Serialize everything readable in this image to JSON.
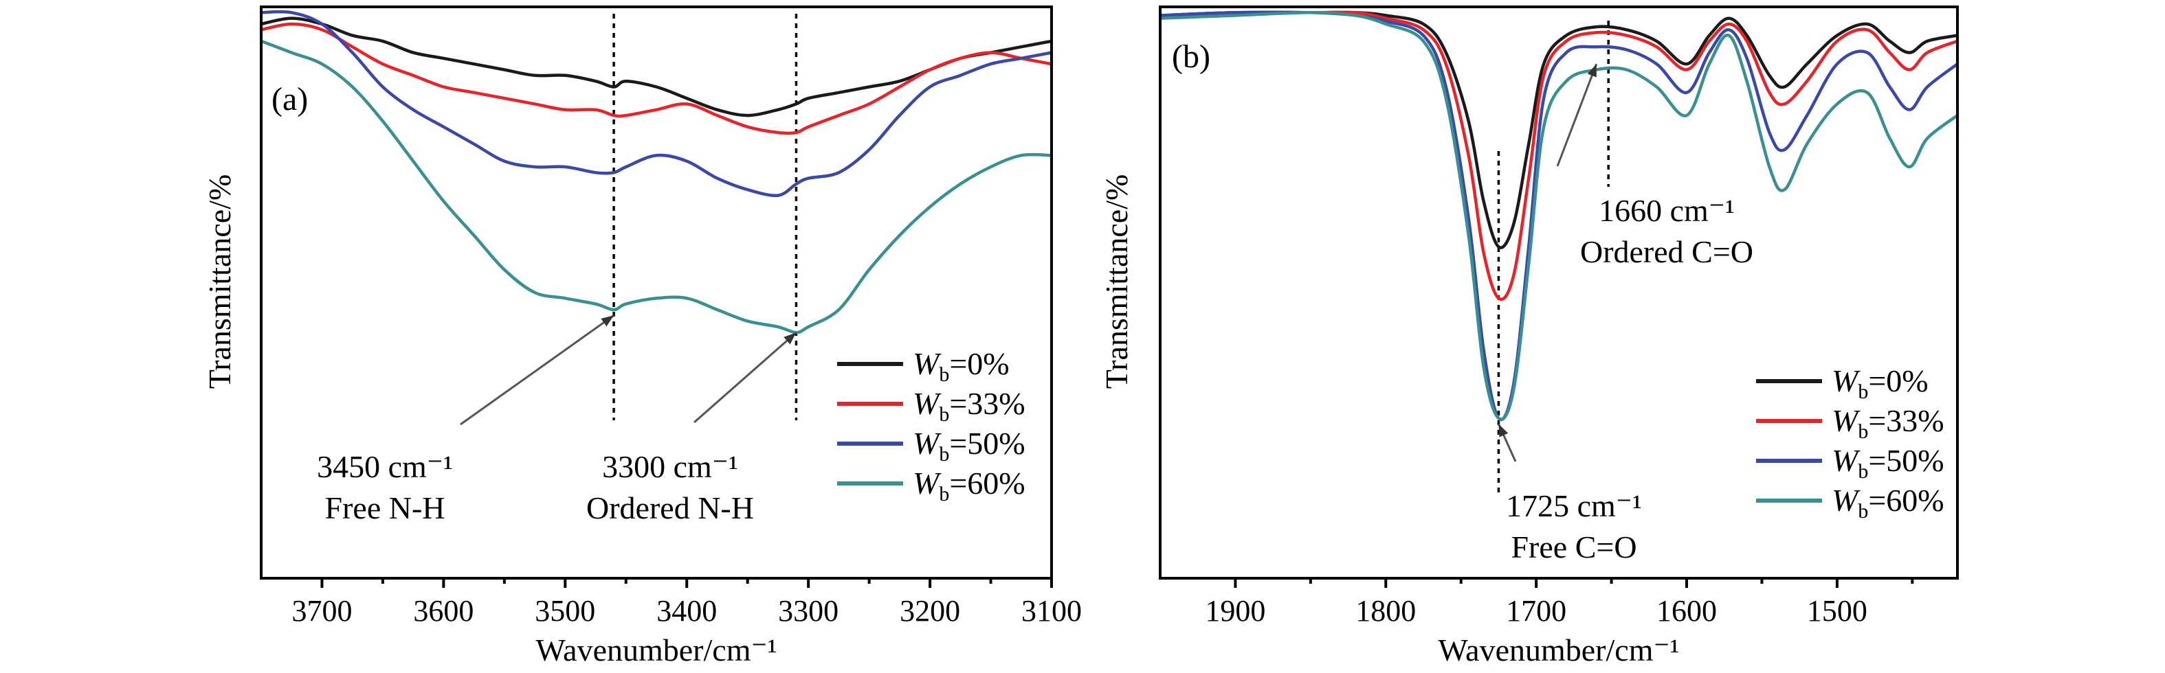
{
  "chart_data": [
    {
      "panel": "a",
      "panel_label": "(a)",
      "type": "line",
      "xlabel": "Wavenumber/cm⁻¹",
      "ylabel": "Transmittance/%",
      "xlim": [
        3750,
        3100
      ],
      "ylim": [
        0,
        100
      ],
      "xticks": [
        "3700",
        "3600",
        "3500",
        "3400",
        "3300",
        "3200",
        "3100"
      ],
      "xtick_values": [
        3700,
        3600,
        3500,
        3400,
        3300,
        3200,
        3100
      ],
      "grid": false,
      "legend": "bottom-right",
      "legend_items": [
        {
          "w": "W",
          "sub": "b",
          "rest": "=0%",
          "color": "#1a1a1a"
        },
        {
          "w": "W",
          "sub": "b",
          "rest": "=33%",
          "color": "#e8242a"
        },
        {
          "w": "W",
          "sub": "b",
          "rest": "=50%",
          "color": "#3a48a8"
        },
        {
          "w": "W",
          "sub": "b",
          "rest": "=60%",
          "color": "#3a9090"
        }
      ],
      "reference_lines": [
        3460,
        3310
      ],
      "annotations": [
        {
          "line1": "3450 cm⁻¹",
          "line2": "Free N-H",
          "target_x": 3460,
          "target_y": 46
        },
        {
          "line1": "3300 cm⁻¹",
          "line2": "Ordered N-H",
          "target_x": 3310,
          "target_y": 43
        }
      ],
      "x": [
        3750,
        3725,
        3700,
        3675,
        3650,
        3625,
        3600,
        3575,
        3550,
        3525,
        3500,
        3475,
        3460,
        3450,
        3425,
        3400,
        3375,
        3350,
        3325,
        3310,
        3300,
        3275,
        3250,
        3225,
        3200,
        3175,
        3150,
        3125,
        3100
      ],
      "series": [
        {
          "name": "Wb=0%",
          "color": "#1a1a1a",
          "values": [
            97,
            98,
            97,
            95,
            94,
            92,
            91,
            90,
            89,
            88,
            88,
            87,
            86,
            87,
            86,
            84,
            82,
            81,
            82,
            83,
            84,
            85,
            86,
            87,
            89,
            91,
            92,
            93,
            94
          ]
        },
        {
          "name": "Wb=33%",
          "color": "#e8242a",
          "values": [
            96,
            97,
            96,
            93,
            90,
            88,
            86,
            85,
            84,
            83,
            82,
            82,
            81,
            81,
            82,
            83,
            81,
            79,
            78,
            78,
            79,
            81,
            83,
            86,
            89,
            91,
            92,
            91,
            90
          ]
        },
        {
          "name": "Wb=50%",
          "color": "#3a48a8",
          "values": [
            99,
            99,
            97,
            92,
            86,
            82,
            79,
            76,
            73,
            72,
            72,
            71,
            71,
            72,
            74,
            73,
            70,
            68,
            67,
            69,
            70,
            71,
            75,
            81,
            86,
            88,
            90,
            91,
            92
          ]
        },
        {
          "name": "Wb=60%",
          "color": "#3a9090",
          "values": [
            94,
            92,
            90,
            86,
            80,
            73,
            66,
            60,
            54,
            50,
            49,
            48,
            47,
            48,
            49,
            49,
            47,
            45,
            44,
            43,
            44,
            47,
            54,
            60,
            65,
            69,
            72,
            74,
            74
          ]
        }
      ]
    },
    {
      "panel": "b",
      "panel_label": "(b)",
      "type": "line",
      "xlabel": "Wavenumber/cm⁻¹",
      "ylabel": "Transmittance/%",
      "xlim": [
        1950,
        1420
      ],
      "ylim": [
        0,
        100
      ],
      "xticks": [
        "1900",
        "1800",
        "1700",
        "1600",
        "1500"
      ],
      "xtick_values": [
        1900,
        1800,
        1700,
        1600,
        1500
      ],
      "grid": false,
      "legend": "bottom-right",
      "legend_items": [
        {
          "w": "W",
          "sub": "b",
          "rest": "=0%",
          "color": "#1a1a1a"
        },
        {
          "w": "W",
          "sub": "b",
          "rest": "=33%",
          "color": "#e8242a"
        },
        {
          "w": "W",
          "sub": "b",
          "rest": "=50%",
          "color": "#3a48a8"
        },
        {
          "w": "W",
          "sub": "b",
          "rest": "=60%",
          "color": "#3a9090"
        }
      ],
      "reference_lines": [
        1725,
        1652
      ],
      "annotations": [
        {
          "line1": "1660 cm⁻¹",
          "line2": "Ordered C=O",
          "target_x": 1660,
          "target_y": 90
        },
        {
          "line1": "1725 cm⁻¹",
          "line2": "Free C=O",
          "target_x": 1725,
          "target_y": 27
        }
      ],
      "x": [
        1950,
        1900,
        1850,
        1820,
        1800,
        1775,
        1760,
        1745,
        1735,
        1725,
        1715,
        1705,
        1695,
        1680,
        1660,
        1640,
        1620,
        1600,
        1585,
        1572,
        1560,
        1545,
        1535,
        1520,
        1500,
        1480,
        1465,
        1452,
        1440,
        1420
      ],
      "series": [
        {
          "name": "Wb=0%",
          "color": "#1a1a1a",
          "values": [
            98.5,
            99,
            99,
            99,
            98.5,
            97,
            92,
            80,
            66,
            58,
            62,
            76,
            90,
            95,
            96.5,
            96,
            94,
            90,
            95,
            98,
            95,
            88,
            86,
            90,
            95,
            97,
            94,
            92,
            94,
            95
          ]
        },
        {
          "name": "Wb=33%",
          "color": "#e8242a",
          "values": [
            98.5,
            99,
            99,
            99,
            98,
            96,
            90,
            74,
            57,
            49,
            53,
            70,
            88,
            94,
            95.5,
            95,
            93,
            89,
            94,
            97,
            94,
            85,
            83,
            87,
            94,
            96,
            92,
            89,
            92,
            94
          ]
        },
        {
          "name": "Wb=50%",
          "color": "#3a48a8",
          "values": [
            98.5,
            99,
            99,
            98.5,
            97.5,
            95,
            86,
            63,
            40,
            28,
            34,
            58,
            84,
            92,
            93,
            92.5,
            90,
            85,
            92,
            96,
            91,
            78,
            75,
            81,
            90,
            92,
            86,
            82,
            86,
            90
          ]
        },
        {
          "name": "Wb=60%",
          "color": "#3a9090",
          "values": [
            98,
            98.5,
            99,
            98.5,
            97,
            94,
            84,
            60,
            37,
            28,
            33,
            55,
            79,
            87,
            89,
            89,
            86,
            81,
            90,
            95,
            87,
            72,
            68,
            76,
            83,
            85,
            77,
            72,
            77,
            81
          ]
        }
      ]
    }
  ]
}
